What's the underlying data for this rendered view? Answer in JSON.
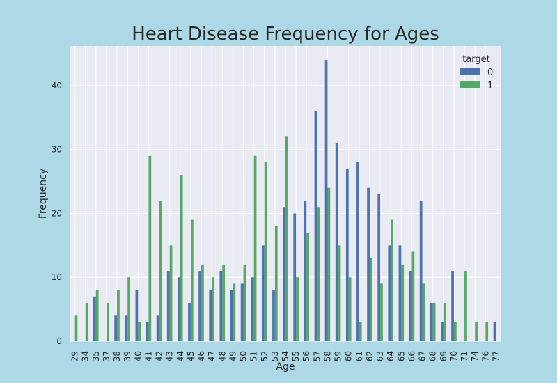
{
  "chart_data": {
    "type": "bar",
    "title": "Heart Disease Frequency for Ages",
    "xlabel": "Age",
    "ylabel": "Frequency",
    "categories": [
      "29",
      "34",
      "35",
      "37",
      "38",
      "39",
      "40",
      "41",
      "42",
      "43",
      "44",
      "45",
      "46",
      "47",
      "48",
      "49",
      "50",
      "51",
      "52",
      "53",
      "54",
      "55",
      "56",
      "57",
      "58",
      "59",
      "60",
      "61",
      "62",
      "63",
      "64",
      "65",
      "66",
      "67",
      "68",
      "69",
      "70",
      "71",
      "74",
      "76",
      "77"
    ],
    "series": [
      {
        "name": "0",
        "color": "#4c72b0",
        "values": [
          0,
          0,
          7,
          0,
          4,
          4,
          8,
          3,
          4,
          11,
          10,
          6,
          11,
          8,
          11,
          8,
          9,
          10,
          15,
          8,
          21,
          20,
          22,
          36,
          44,
          31,
          27,
          28,
          24,
          23,
          15,
          15,
          11,
          22,
          6,
          3,
          11,
          0,
          0,
          0,
          3
        ]
      },
      {
        "name": "1",
        "color": "#55a868",
        "values": [
          4,
          6,
          8,
          6,
          8,
          10,
          3,
          29,
          22,
          15,
          26,
          19,
          12,
          10,
          12,
          9,
          12,
          29,
          28,
          18,
          32,
          10,
          17,
          21,
          24,
          15,
          10,
          3,
          13,
          9,
          19,
          12,
          14,
          9,
          6,
          6,
          3,
          11,
          3,
          3,
          0
        ]
      }
    ],
    "ylim": [
      0,
      46.2
    ],
    "yticks": [
      0,
      10,
      20,
      30,
      40
    ],
    "grid": true,
    "legend": {
      "title": "target",
      "placement": "top-right"
    }
  }
}
